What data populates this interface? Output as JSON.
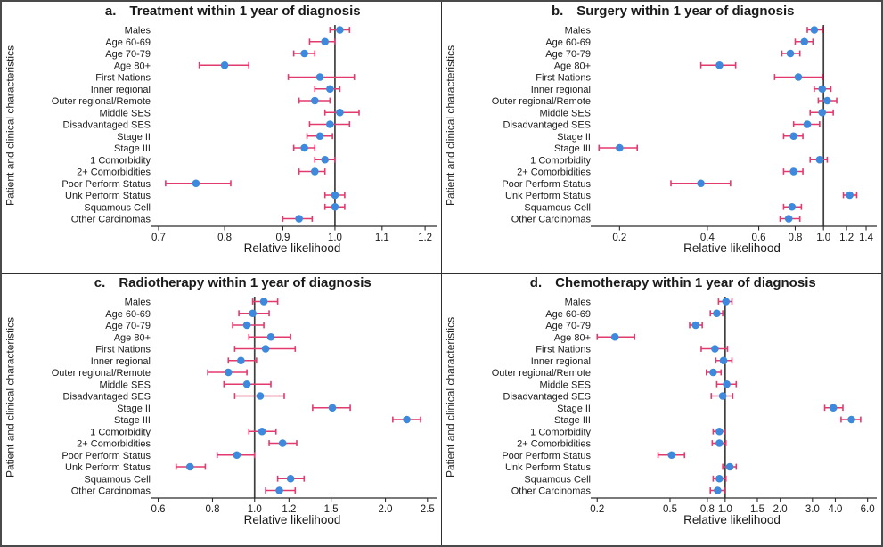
{
  "figure": {
    "xlabel": "Relative likelihood",
    "ylabel": "Patient and clinical characteristics"
  },
  "colors": {
    "point": "#3d89dd",
    "ci": "#e23a6d",
    "refline": "#3f3f3f",
    "axis": "#2a2a2a",
    "text": "#1a1a1a",
    "border": "#2e2e2e"
  },
  "categories": [
    "Males",
    "Age 60-69",
    "Age 70-79",
    "Age 80+",
    "First Nations",
    "Inner regional",
    "Outer regional/Remote",
    "Middle SES",
    "Disadvantaged SES",
    "Stage II",
    "Stage III",
    "1 Comorbidity",
    "2+ Comorbidities",
    "Poor Perform Status",
    "Unk Perform Status",
    "Squamous Cell",
    "Other Carcinomas"
  ],
  "chart_data": [
    {
      "type": "scatter",
      "subtype": "forest",
      "letter": "a.",
      "title": "Treatment within 1 year of diagnosis",
      "xlabel": "Relative likelihood",
      "ylabel": "Patient and clinical characteristics",
      "xscale": "log",
      "xlim": [
        0.695,
        1.215
      ],
      "refline": 1.0,
      "grid": false,
      "xticks": [
        0.7,
        0.8,
        0.9,
        1.0,
        1.1,
        1.2
      ],
      "xtick_labels": [
        "0.7",
        "0.8",
        "0.9",
        "1.0",
        "1.1",
        "1.2"
      ],
      "est": [
        1.01,
        0.98,
        0.94,
        0.8,
        0.97,
        0.99,
        0.96,
        1.01,
        0.99,
        0.97,
        0.94,
        0.98,
        0.96,
        0.755,
        1.0,
        1.0,
        0.93
      ],
      "lo": [
        0.99,
        0.95,
        0.92,
        0.76,
        0.91,
        0.96,
        0.93,
        0.98,
        0.95,
        0.945,
        0.92,
        0.96,
        0.93,
        0.71,
        0.98,
        0.98,
        0.9
      ],
      "hi": [
        1.03,
        1.0,
        0.96,
        0.84,
        1.04,
        1.01,
        0.99,
        1.05,
        1.03,
        0.995,
        0.96,
        1.0,
        0.98,
        0.81,
        1.02,
        1.02,
        0.955
      ]
    },
    {
      "type": "scatter",
      "subtype": "forest",
      "letter": "b.",
      "title": "Surgery within 1 year of diagnosis",
      "xlabel": "Relative likelihood",
      "ylabel": "Patient and clinical characteristics",
      "xscale": "log",
      "xlim": [
        0.165,
        1.46
      ],
      "refline": 1.0,
      "grid": false,
      "xticks": [
        0.2,
        0.4,
        0.6,
        0.8,
        1.0,
        1.2,
        1.4
      ],
      "xtick_labels": [
        "0.2",
        "0.4",
        "0.6",
        "0.8",
        "1.0",
        "1.2",
        "1.4"
      ],
      "est": [
        0.93,
        0.86,
        0.77,
        0.44,
        0.82,
        0.99,
        1.03,
        0.99,
        0.88,
        0.79,
        0.2,
        0.97,
        0.79,
        0.38,
        1.23,
        0.78,
        0.76
      ],
      "lo": [
        0.88,
        0.8,
        0.72,
        0.38,
        0.68,
        0.93,
        0.96,
        0.9,
        0.79,
        0.73,
        0.17,
        0.9,
        0.73,
        0.3,
        1.17,
        0.73,
        0.71
      ],
      "hi": [
        0.99,
        0.92,
        0.83,
        0.5,
        0.99,
        1.06,
        1.11,
        1.08,
        0.97,
        0.85,
        0.23,
        1.03,
        0.85,
        0.48,
        1.3,
        0.84,
        0.83
      ]
    },
    {
      "type": "scatter",
      "subtype": "forest",
      "letter": "c.",
      "title": "Radiotherapy within 1 year of diagnosis",
      "xlabel": "Relative likelihood",
      "ylabel": "Patient and clinical characteristics",
      "xscale": "log",
      "xlim": [
        0.59,
        2.55
      ],
      "refline": 1.0,
      "grid": false,
      "xticks": [
        0.6,
        0.8,
        1.0,
        1.2,
        1.5,
        2.0,
        2.5
      ],
      "xtick_labels": [
        "0.6",
        "0.8",
        "1.0",
        "1.2",
        "1.5",
        "2.0",
        "2.5"
      ],
      "est": [
        1.05,
        0.99,
        0.96,
        1.09,
        1.06,
        0.93,
        0.87,
        0.96,
        1.03,
        1.51,
        2.24,
        1.04,
        1.16,
        0.91,
        0.71,
        1.21,
        1.14
      ],
      "lo": [
        0.99,
        0.92,
        0.89,
        0.97,
        0.9,
        0.87,
        0.78,
        0.85,
        0.9,
        1.36,
        2.08,
        0.97,
        1.08,
        0.82,
        0.66,
        1.13,
        1.06
      ],
      "hi": [
        1.13,
        1.08,
        1.05,
        1.21,
        1.24,
        1.01,
        0.96,
        1.09,
        1.17,
        1.66,
        2.41,
        1.12,
        1.25,
        1.0,
        0.77,
        1.3,
        1.24
      ]
    },
    {
      "type": "scatter",
      "subtype": "forest",
      "letter": "d.",
      "title": "Chemotherapy within 1 year of diagnosis",
      "xlabel": "Relative likelihood",
      "ylabel": "Patient and clinical characteristics",
      "xscale": "log",
      "xlim": [
        0.195,
        6.3
      ],
      "refline": 1.0,
      "grid": false,
      "xticks": [
        0.2,
        0.5,
        0.8,
        1.0,
        1.5,
        2.0,
        3.0,
        4.0,
        6.0
      ],
      "xtick_labels": [
        "0.2",
        "0.5",
        "0.8",
        "1.0",
        "1.5",
        "2.0",
        "3.0",
        "4.0",
        "6.0"
      ],
      "est": [
        1.01,
        0.9,
        0.69,
        0.25,
        0.88,
        0.98,
        0.86,
        1.02,
        0.97,
        3.9,
        4.9,
        0.93,
        0.93,
        0.51,
        1.06,
        0.93,
        0.91
      ],
      "lo": [
        0.92,
        0.83,
        0.64,
        0.2,
        0.74,
        0.89,
        0.79,
        0.9,
        0.84,
        3.5,
        4.3,
        0.86,
        0.85,
        0.43,
        0.97,
        0.86,
        0.83
      ],
      "hi": [
        1.09,
        0.97,
        0.75,
        0.32,
        1.03,
        1.09,
        0.95,
        1.15,
        1.1,
        4.4,
        5.5,
        0.99,
        1.01,
        0.6,
        1.15,
        1.01,
        0.99
      ]
    }
  ]
}
